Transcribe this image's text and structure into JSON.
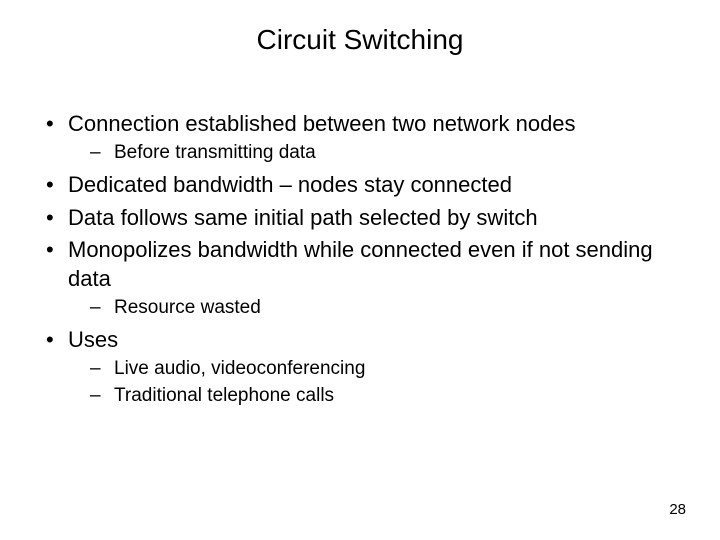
{
  "slide": {
    "title": "Circuit Switching",
    "page_number": "28",
    "bullets": [
      {
        "text": "Connection established between two network nodes",
        "sub": [
          "Before transmitting data"
        ]
      },
      {
        "text": "Dedicated bandwidth – nodes stay connected",
        "sub": []
      },
      {
        "text": "Data follows same initial path selected by switch",
        "sub": []
      },
      {
        "text": "Monopolizes bandwidth while connected even if not sending data",
        "sub": [
          "Resource wasted"
        ]
      },
      {
        "text": "Uses",
        "sub": [
          "Live audio, videoconferencing",
          "Traditional telephone calls"
        ]
      }
    ]
  },
  "style": {
    "background_color": "#ffffff",
    "text_color": "#000000",
    "title_fontsize": 28,
    "body_fontsize": 22,
    "sub_fontsize": 19,
    "pagenum_fontsize": 15,
    "font_family": "Arial"
  }
}
